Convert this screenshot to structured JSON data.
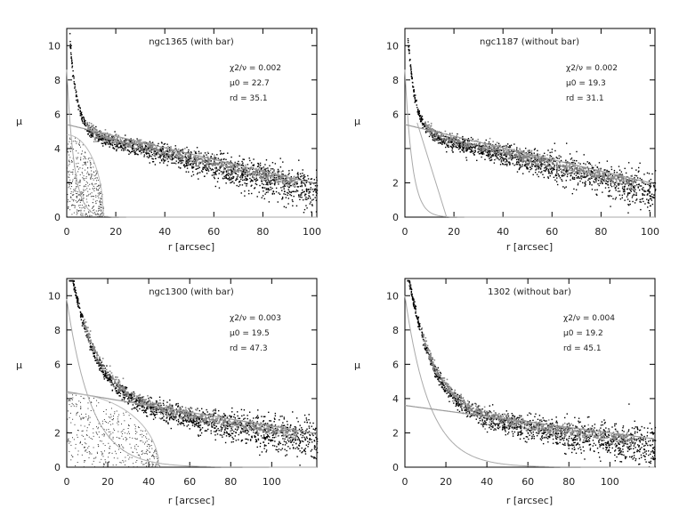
{
  "figure": {
    "description_none": ""
  },
  "chart_data": [
    {
      "type": "scatter",
      "title": "ngc1365 (with bar)",
      "xlabel": "r [arcsec]",
      "ylabel": "μ",
      "xlim": [
        0,
        102
      ],
      "ylim": [
        11,
        0
      ],
      "xticks": [
        0,
        20,
        40,
        60,
        80,
        100
      ],
      "xtick_labels": [
        "0",
        "20",
        "40",
        "60",
        "80",
        "100"
      ],
      "yticks": [
        10,
        8,
        6,
        4,
        2,
        0
      ],
      "ytick_labels": [
        "10",
        "8",
        "6",
        "4",
        "",
        "0"
      ],
      "annotations": [
        "χ2/ν = 0.002",
        "μ0 = 22.7",
        "rd = 35.1"
      ],
      "model": {
        "bulge_mu0": 8.6,
        "bulge_re": 3,
        "disk_mu0": 5.4,
        "disk_slope": 0.034,
        "disk_xmax": 102,
        "bar_mu0": 4.8,
        "bar_end": 15,
        "hline": null
      }
    },
    {
      "type": "scatter",
      "title": "ngc1187 (without bar)",
      "xlabel": "r [arcsec]",
      "ylabel": "μ",
      "xlim": [
        0,
        102
      ],
      "ylim": [
        11,
        0
      ],
      "xticks": [
        0,
        20,
        40,
        60,
        80,
        100
      ],
      "xtick_labels": [
        "0",
        "20",
        "40",
        "60",
        "80",
        "100"
      ],
      "yticks": [
        10,
        8,
        6,
        4,
        2,
        0
      ],
      "ytick_labels": [
        "10",
        "8",
        "6",
        "",
        "2",
        "0"
      ],
      "annotations": [
        "χ2/ν = 0.002",
        "μ0 = 19.3",
        "rd = 31.1"
      ],
      "model": {
        "bulge_mu0": 8.6,
        "bulge_re": 3,
        "disk_mu0": 5.4,
        "disk_slope": 0.034,
        "disk_xmax": 102,
        "bar_mu0": null,
        "bar_end": null,
        "hline": null,
        "steep_line": [
          [
            5,
            5.5
          ],
          [
            17,
            0
          ]
        ]
      }
    },
    {
      "type": "scatter",
      "title": "ngc1300 (with bar)",
      "xlabel": "r [arcsec]",
      "ylabel": "μ",
      "xlim": [
        0,
        122
      ],
      "ylim": [
        11,
        0
      ],
      "xticks": [
        0,
        20,
        40,
        60,
        80,
        100
      ],
      "xtick_labels": [
        "0",
        "20",
        "40",
        "60",
        "80",
        "100"
      ],
      "yticks": [
        10,
        8,
        6,
        4,
        2,
        0
      ],
      "ytick_labels": [
        "10",
        "8",
        "6",
        "",
        "2",
        "0"
      ],
      "annotations": [
        "χ2/ν = 0.003",
        "μ0 = 19.5",
        "rd = 47.3"
      ],
      "model": {
        "bulge_mu0": 9.8,
        "bulge_re": 12,
        "disk_mu0": 4.4,
        "disk_slope": 0.02,
        "disk_xmax": 122,
        "bar_mu0": 4.3,
        "bar_end": 45,
        "hline": null
      }
    },
    {
      "type": "scatter",
      "title": "1302 (without bar)",
      "xlabel": "r [arcsec]",
      "ylabel": "μ",
      "xlim": [
        0,
        122
      ],
      "ylim": [
        11,
        0
      ],
      "xticks": [
        0,
        20,
        40,
        60,
        80,
        100
      ],
      "xtick_labels": [
        "0",
        "20",
        "40",
        "60",
        "80",
        "100"
      ],
      "yticks": [
        10,
        8,
        6,
        4,
        2,
        0
      ],
      "ytick_labels": [
        "10",
        "8",
        "6",
        "4",
        "2",
        "0"
      ],
      "annotations": [
        "χ2/ν = 0.004",
        "μ0 = 19.2",
        "rd = 45.1"
      ],
      "model": {
        "bulge_mu0": 10,
        "bulge_re": 12,
        "disk_mu0": 3.6,
        "disk_slope": 0.016,
        "disk_xmax": 122,
        "bar_mu0": null,
        "bar_end": null,
        "hline": null
      }
    }
  ]
}
